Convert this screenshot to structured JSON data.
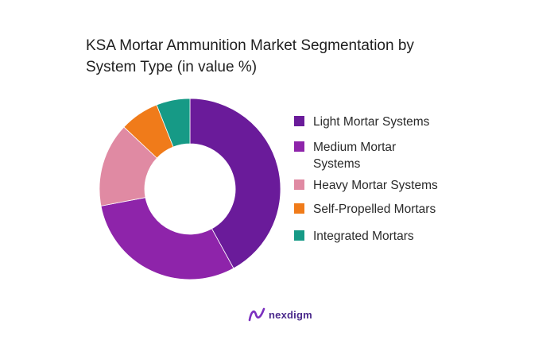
{
  "chart_data": {
    "type": "donut",
    "title": "KSA Mortar Ammunition Market Segmentation by System Type (in value %)",
    "categories": [
      "Light Mortar Systems",
      "Medium Mortar Systems",
      "Heavy Mortar Systems",
      "Self-Propelled Mortars",
      "Integrated Mortars"
    ],
    "values": [
      42,
      30,
      15,
      7,
      6
    ],
    "unit": "%",
    "colors": [
      "#6a1b9a",
      "#8e24aa",
      "#e08aa3",
      "#f07b1a",
      "#169a86"
    ],
    "legend_position": "right"
  },
  "brand": {
    "name": "nexdigm",
    "icon": "nexdigm-logo-icon"
  }
}
